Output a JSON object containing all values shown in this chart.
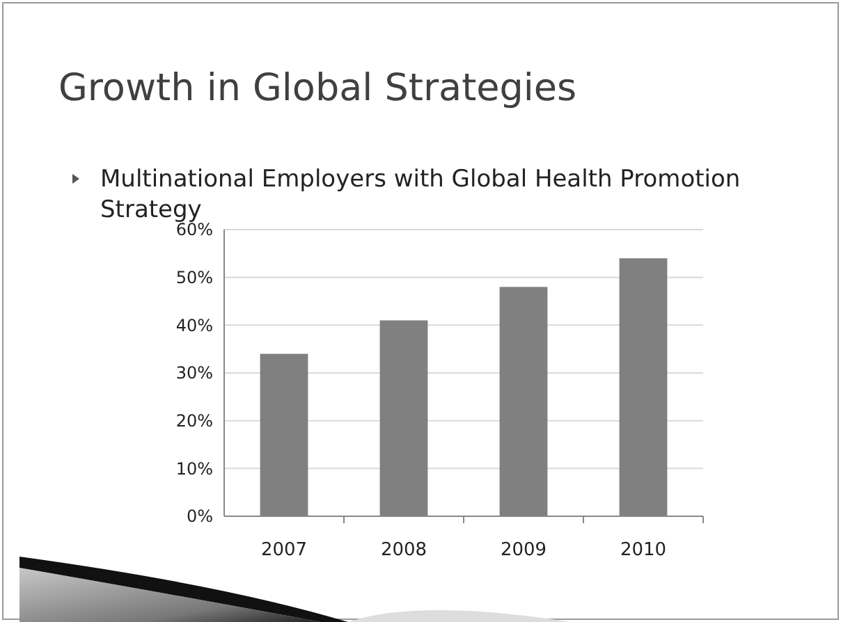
{
  "chart_data": {
    "type": "bar",
    "title": "Growth in Global Strategies",
    "subtitle": "Multinational Employers with Global Health Promotion Strategy",
    "categories": [
      "2007",
      "2008",
      "2009",
      "2010"
    ],
    "values": [
      34,
      41,
      48,
      54
    ],
    "color": "#808080",
    "ylim": [
      0,
      60
    ],
    "yticks": [
      {
        "value": 0,
        "label": "0%"
      },
      {
        "value": 10,
        "label": "10%"
      },
      {
        "value": 20,
        "label": "20%"
      },
      {
        "value": 30,
        "label": "30%"
      },
      {
        "value": 40,
        "label": "40%"
      },
      {
        "value": 50,
        "label": "50%"
      },
      {
        "value": 60,
        "label": "60%"
      }
    ],
    "grid": "y"
  }
}
